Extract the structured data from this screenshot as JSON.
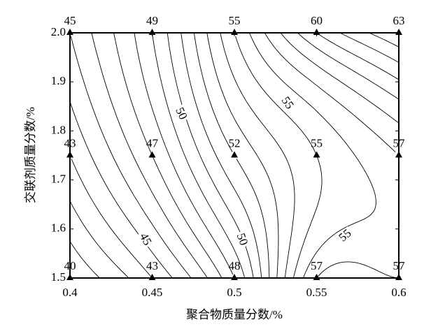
{
  "chart_data": {
    "type": "contour",
    "x_label": "聚合物质量分数/%",
    "y_label": "交联剂质量分数/%",
    "x": [
      0.4,
      0.45,
      0.5,
      0.55,
      0.6
    ],
    "y": [
      1.5,
      1.75,
      2.0
    ],
    "z": [
      [
        40,
        43,
        48,
        57,
        57
      ],
      [
        43,
        47,
        52,
        55,
        57
      ],
      [
        45,
        49,
        55,
        60,
        63
      ]
    ],
    "contour_levels": [
      41,
      42,
      43,
      44,
      45,
      46,
      47,
      48,
      49,
      50,
      51,
      52,
      53,
      54,
      55,
      56,
      57,
      58,
      59,
      60,
      61,
      62
    ],
    "contour_labels": [
      50,
      45,
      50,
      55,
      55
    ],
    "xlim": [
      0.4,
      0.6
    ],
    "ylim": [
      1.5,
      2.0
    ],
    "xticks": [
      0.4,
      0.45,
      0.5,
      0.55,
      0.6
    ],
    "yticks": [
      1.5,
      1.6,
      1.7,
      1.8,
      1.9,
      {
        "value": 2.0,
        "label": "2.0"
      }
    ],
    "color": "#000000"
  }
}
